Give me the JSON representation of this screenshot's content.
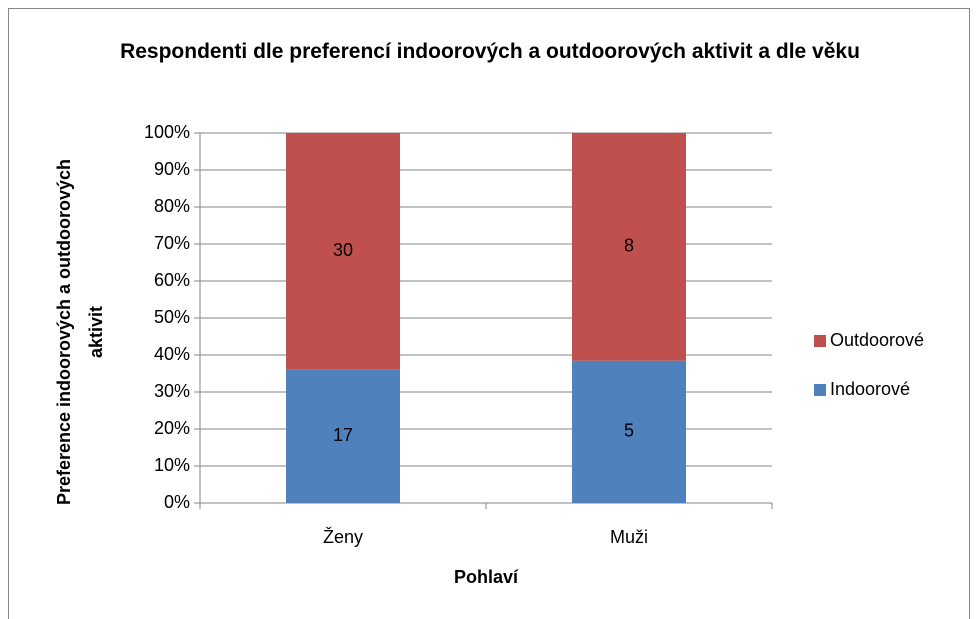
{
  "chart_data": {
    "type": "bar",
    "stack": "percent",
    "title": "Respondenti dle preferencí indoorových a outdoorových aktivit a dle věku",
    "x_label": "Pohlaví",
    "y_label": "Preference indoorových a outdoorových aktivit",
    "categories": [
      "Ženy",
      "Muži"
    ],
    "series": [
      {
        "name": "Indoorové",
        "color": "#4f81bd",
        "values": [
          17,
          5
        ]
      },
      {
        "name": "Outdoorové",
        "color": "#c0504d",
        "values": [
          30,
          8
        ]
      }
    ],
    "ylim": [
      0,
      100
    ],
    "yticks": [
      {
        "value": 0,
        "label": "0%"
      },
      {
        "value": 10,
        "label": "10%"
      },
      {
        "value": 20,
        "label": "20%"
      },
      {
        "value": 30,
        "label": "30%"
      },
      {
        "value": 40,
        "label": "40%"
      },
      {
        "value": 50,
        "label": "50%"
      },
      {
        "value": 60,
        "label": "60%"
      },
      {
        "value": 70,
        "label": "70%"
      },
      {
        "value": 80,
        "label": "80%"
      },
      {
        "value": 90,
        "label": "90%"
      },
      {
        "value": 100,
        "label": "100%"
      }
    ],
    "grid": true,
    "legend": "right"
  }
}
